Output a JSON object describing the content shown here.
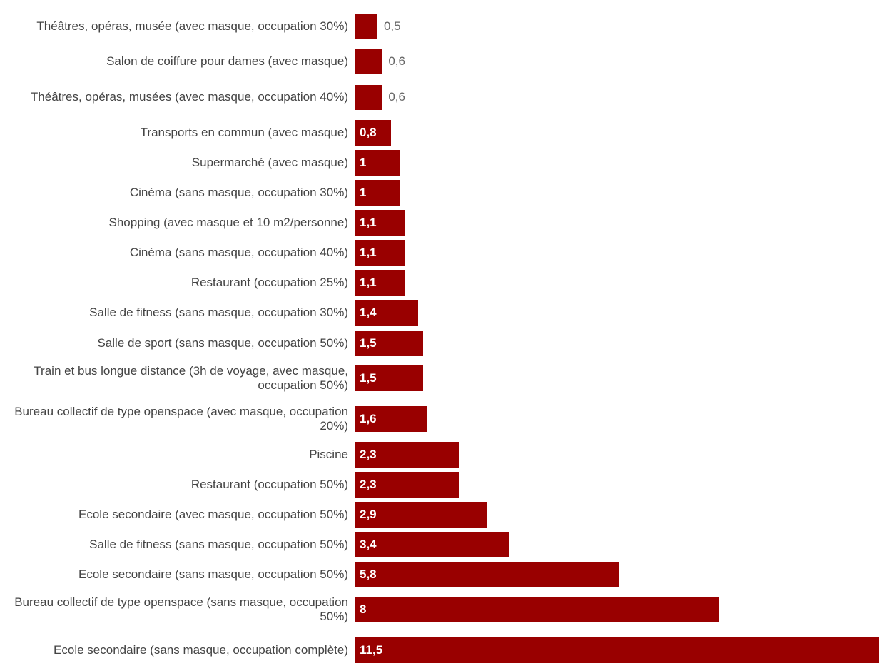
{
  "chart_data": {
    "type": "bar",
    "orientation": "horizontal",
    "categories": [
      "Théâtres, opéras, musée (avec masque, occupation 30%)",
      "Salon de coiffure pour dames (avec masque)",
      "Théâtres, opéras, musées (avec masque, occupation 40%)",
      "Transports en commun (avec masque)",
      "Supermarché (avec masque)",
      "Cinéma (sans masque, occupation 30%)",
      "Shopping (avec masque et 10 m2/personne)",
      "Cinéma (sans masque, occupation 40%)",
      "Restaurant (occupation 25%)",
      "Salle de fitness (sans masque, occupation 30%)",
      "Salle de sport (sans masque, occupation 50%)",
      "Train et bus longue distance (3h de voyage, avec masque, occupation 50%)",
      "Bureau collectif de type openspace (avec masque, occupation 20%)",
      "Piscine",
      "Restaurant (occupation 50%)",
      "Ecole secondaire (avec masque, occupation 50%)",
      "Salle de fitness (sans masque, occupation 50%)",
      "Ecole secondaire (sans masque, occupation 50%)",
      "Bureau collectif de type openspace (sans masque, occupation 50%)",
      "Ecole secondaire (sans masque, occupation complète)"
    ],
    "values": [
      0.5,
      0.6,
      0.6,
      0.8,
      1,
      1,
      1.1,
      1.1,
      1.1,
      1.4,
      1.5,
      1.5,
      1.6,
      2.3,
      2.3,
      2.9,
      3.4,
      5.8,
      8,
      11.5
    ],
    "value_labels": [
      "0,5",
      "0,6",
      "0,6",
      "0,8",
      "1",
      "1",
      "1,1",
      "1,1",
      "1,1",
      "1,4",
      "1,5",
      "1,5",
      "1,6",
      "2,3",
      "2,3",
      "2,9",
      "3,4",
      "5,8",
      "8",
      "11,5"
    ],
    "xlim": [
      0,
      11.5
    ],
    "bar_color": "#990000",
    "grid": false,
    "legend": "none"
  }
}
